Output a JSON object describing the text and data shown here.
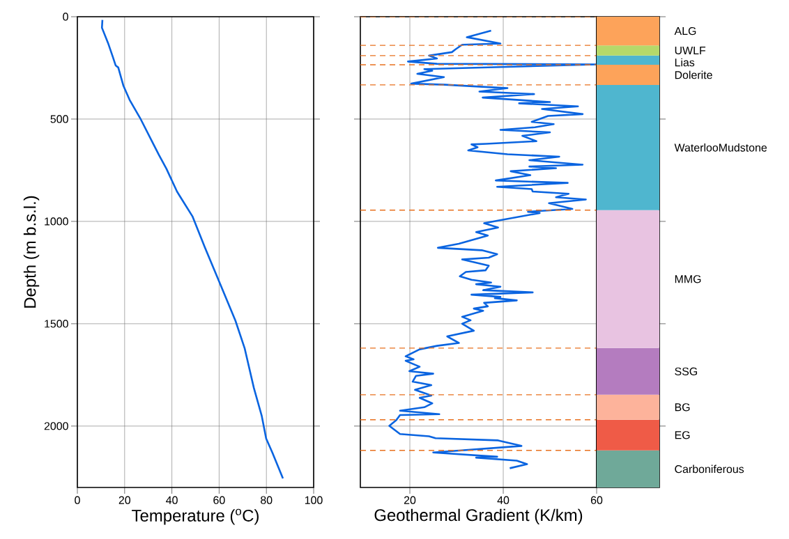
{
  "chart_data": [
    {
      "type": "line",
      "xlabel": "Temperature ($^{o}$C)",
      "ylabel": "Depth (m b.s.l.)",
      "xlim": [
        0,
        100
      ],
      "xticks": [
        0,
        20,
        40,
        60,
        80,
        100
      ],
      "ylim": [
        2300,
        0
      ],
      "yticks": [
        0,
        500,
        1000,
        1500,
        2000
      ],
      "grid": true,
      "series": [
        {
          "color": "#0a64e0",
          "x": [
            10.6,
            10.4,
            13.0,
            15.0,
            16.2,
            17.3,
            19.5,
            22.1,
            26.6,
            31.9,
            34.5,
            37.7,
            42.2,
            48.7,
            53.9,
            60.4,
            66.9,
            70.8,
            74.7,
            78.0,
            79.9,
            82.5,
            87.0
          ],
          "values": [
            16,
            54,
            129,
            196,
            238,
            248,
            338,
            406,
            496,
            616,
            675,
            743,
            855,
            975,
            1125,
            1305,
            1485,
            1620,
            1814,
            1949,
            2061,
            2129,
            2256
          ]
        }
      ]
    },
    {
      "type": "line",
      "xlabel": "Geothermal Gradient (K/km)",
      "xlim": [
        9.4,
        60
      ],
      "xticks": [
        20,
        40,
        60
      ],
      "ylim": [
        2300,
        0
      ],
      "yticks": [
        0,
        500,
        1000,
        1500,
        2000
      ],
      "tick_labels": "x",
      "grid": true,
      "series": [
        {
          "color": "#0a64e0",
          "x": [
            37.4,
            32.2,
            39.4,
            31.2,
            29.8,
            29.0,
            24.1,
            25.8,
            19.6,
            25.8,
            60,
            23.1,
            24.8,
            21.6,
            27.3,
            20.3,
            27.5,
            40.9,
            34.9,
            46.6,
            35.6,
            50.0,
            43.4,
            56.0,
            48.3,
            57.0,
            49.6,
            46.1,
            50.8,
            46.8,
            39.4,
            50.0,
            44.1,
            47.1,
            36.4,
            33.2,
            34.5,
            32.5,
            40.9,
            52.0,
            45.6,
            57.0,
            45.6,
            51.3,
            41.6,
            45.8,
            38.4,
            53.8,
            38.7,
            46.1,
            46.3,
            54.0,
            51.3,
            57.7,
            49.8,
            54.8,
            45.3,
            47.8,
            38.9,
            35.9,
            38.9,
            34.2,
            36.7,
            30.5,
            26.0,
            35.4,
            38.7,
            36.9,
            31.2,
            36.9,
            36.2,
            32.0,
            30.7,
            33.2,
            37.4,
            34.2,
            39.4,
            35.7,
            46.3,
            33.2,
            39.4,
            38.2,
            42.9,
            35.9,
            36.7,
            33.7,
            35.7,
            31.2,
            33.0,
            31.2,
            33.7,
            28.0,
            30.5,
            25.8,
            22.1,
            19.1,
            20.8,
            19.1,
            22.1,
            19.9,
            25.0,
            21.3,
            20.6,
            24.6,
            21.1,
            24.6,
            22.1,
            24.8,
            23.1,
            17.9,
            26.3,
            17.9,
            17.1,
            15.6,
            17.9,
            24.1,
            25.5,
            38.9,
            43.9,
            25.0,
            38.7,
            34.2,
            42.9,
            45.1,
            41.4
          ],
          "values": [
            68,
            100,
            131,
            137,
            159,
            173,
            190,
            204,
            219,
            230,
            233,
            256,
            264,
            279,
            295,
            327,
            332,
            349,
            366,
            378,
            395,
            417,
            423,
            438,
            451,
            476,
            485,
            514,
            525,
            540,
            553,
            565,
            582,
            608,
            621,
            624,
            638,
            653,
            672,
            684,
            701,
            723,
            732,
            740,
            755,
            774,
            800,
            812,
            831,
            842,
            854,
            865,
            882,
            893,
            911,
            939,
            953,
            959,
            996,
            1009,
            1030,
            1052,
            1069,
            1109,
            1129,
            1141,
            1160,
            1177,
            1186,
            1216,
            1239,
            1247,
            1268,
            1285,
            1299,
            1307,
            1319,
            1336,
            1347,
            1358,
            1369,
            1375,
            1386,
            1398,
            1415,
            1426,
            1437,
            1466,
            1483,
            1500,
            1534,
            1562,
            1594,
            1608,
            1625,
            1659,
            1674,
            1681,
            1710,
            1732,
            1744,
            1755,
            1783,
            1800,
            1823,
            1851,
            1862,
            1889,
            1908,
            1925,
            1942,
            1946,
            1971,
            1999,
            2039,
            2050,
            2059,
            2070,
            2097,
            2129,
            2150,
            2154,
            2169,
            2186,
            2206
          ]
        }
      ],
      "ref_lines": [
        {
          "axis": "y",
          "value": 0,
          "color": "#e8701e",
          "line_style": "dashed"
        },
        {
          "axis": "y",
          "value": 140,
          "color": "#e8701e",
          "line_style": "dashed"
        },
        {
          "axis": "y",
          "value": 190,
          "color": "#e8701e",
          "line_style": "dashed"
        },
        {
          "axis": "y",
          "value": 235,
          "color": "#e8701e",
          "line_style": "dashed"
        },
        {
          "axis": "y",
          "value": 333,
          "color": "#e8701e",
          "line_style": "dashed"
        },
        {
          "axis": "y",
          "value": 945,
          "color": "#e8701e",
          "line_style": "dashed"
        },
        {
          "axis": "y",
          "value": 1619,
          "color": "#e8701e",
          "line_style": "dashed"
        },
        {
          "axis": "y",
          "value": 1847,
          "color": "#e8701e",
          "line_style": "dashed"
        },
        {
          "axis": "y",
          "value": 1969,
          "color": "#e8701e",
          "line_style": "dashed"
        },
        {
          "axis": "y",
          "value": 2119,
          "color": "#e8701e",
          "line_style": "dashed"
        }
      ]
    },
    {
      "type": "bar",
      "stacked": true,
      "categories": [
        null
      ],
      "ylim": [
        2300,
        0
      ],
      "yticks": [
        {
          "value": 0,
          "label": null
        },
        {
          "value": 500,
          "label": null
        },
        {
          "value": 1000,
          "label": null
        },
        {
          "value": 1500,
          "label": null
        },
        {
          "value": 2000,
          "label": null
        }
      ],
      "tick_labels": false,
      "series": [
        {
          "name": "ALG",
          "color": "#fda35a",
          "values": [
            140
          ]
        },
        {
          "name": "UWLF",
          "color": "#b5d96a",
          "values": [
            50
          ]
        },
        {
          "name": "Lias",
          "color": "#4fb6cf",
          "values": [
            45
          ]
        },
        {
          "name": "Dolerite",
          "color": "#fda35a",
          "values": [
            98
          ]
        },
        {
          "name": "WaterlooMudstone",
          "color": "#4fb6cf",
          "values": [
            612
          ]
        },
        {
          "name": "MMG",
          "color": "#e8c3e1",
          "values": [
            674
          ]
        },
        {
          "name": "SSG",
          "color": "#b47cbf",
          "values": [
            228
          ]
        },
        {
          "name": "BG",
          "color": "#fdb39b",
          "values": [
            122
          ]
        },
        {
          "name": "EG",
          "color": "#ef5b47",
          "values": [
            150
          ]
        },
        {
          "name": "Carboniferous",
          "color": "#6fa999",
          "values": [
            181
          ]
        }
      ]
    }
  ]
}
